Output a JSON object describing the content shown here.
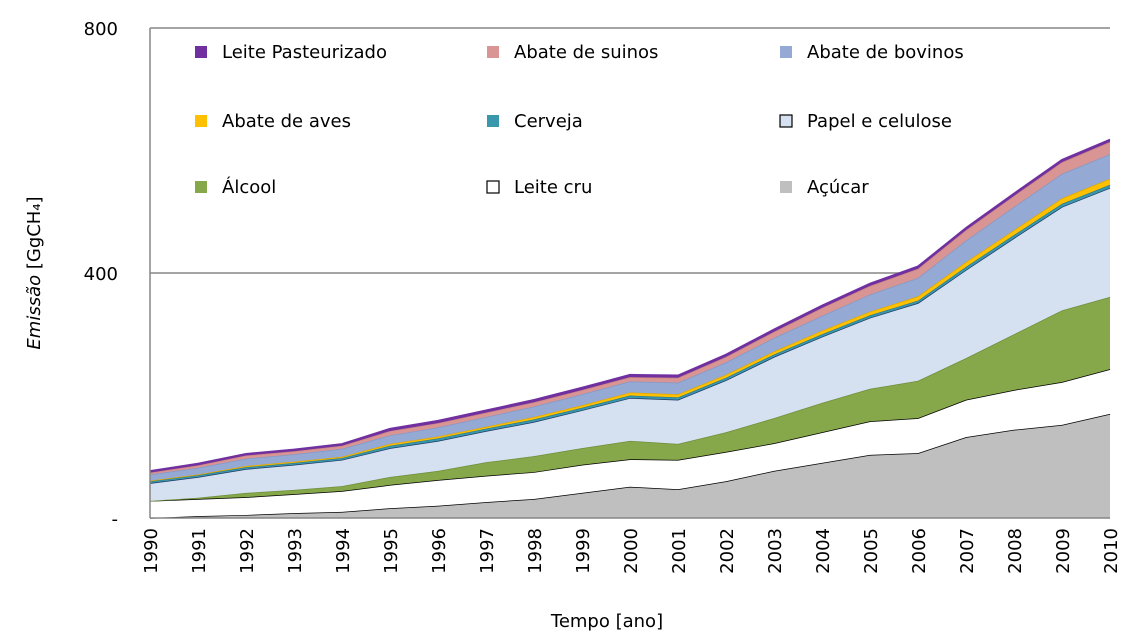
{
  "chart_data": {
    "type": "stacked-area",
    "x_label": "Tempo [ano]",
    "y_label": "Emissão",
    "y_unit": "[GgCH₄]",
    "categories": [
      "1990",
      "1991",
      "1992",
      "1993",
      "1994",
      "1995",
      "1996",
      "1997",
      "1998",
      "1999",
      "2000",
      "2001",
      "2002",
      "2003",
      "2004",
      "2005",
      "2006",
      "2007",
      "2008",
      "2009",
      "2010"
    ],
    "ylim": [
      0,
      800
    ],
    "yticks": [
      {
        "value": 0,
        "label": "-"
      },
      400,
      800
    ],
    "grid": true,
    "series": [
      {
        "name": "Açúcar",
        "color": "#bfbfbf",
        "edge": "#000000",
        "values": [
          0,
          3,
          5,
          8,
          10,
          16,
          20,
          26,
          31,
          41,
          51,
          47,
          60,
          77,
          90,
          103,
          106,
          132,
          144,
          152,
          170
        ]
      },
      {
        "name": "Leite cru",
        "color": "#ffffff",
        "edge": "#000000",
        "values": [
          28,
          28,
          29,
          31,
          34,
          38,
          42,
          43,
          44,
          46,
          45,
          48,
          48,
          45,
          50,
          55,
          57,
          61,
          65,
          70,
          73
        ]
      },
      {
        "name": "Álcool",
        "color": "#86a84a",
        "edge": "#6f8f3a",
        "values": [
          0,
          2,
          7,
          7,
          8,
          13,
          15,
          22,
          26,
          27,
          30,
          26,
          32,
          41,
          48,
          53,
          61,
          68,
          91,
          117,
          118
        ]
      },
      {
        "name": "Papel e celulose",
        "color": "#d5e0f1",
        "edge": "#1f3a68",
        "values": [
          29,
          34,
          39,
          41,
          43,
          47,
          49,
          51,
          56,
          62,
          70,
          72,
          85,
          100,
          108,
          116,
          127,
          144,
          157,
          169,
          178
        ]
      },
      {
        "name": "Cerveja",
        "color": "#3a98ad",
        "edge": "#2f7f91",
        "values": [
          3,
          3,
          3,
          3,
          3,
          4,
          4,
          4,
          4,
          4,
          4,
          4,
          4,
          4,
          4,
          4,
          4,
          5,
          5,
          5,
          5
        ]
      },
      {
        "name": "Abate de aves",
        "color": "#ffc000",
        "edge": "#e0a800",
        "values": [
          1,
          1,
          2,
          2,
          2,
          3,
          3,
          3,
          4,
          4,
          5,
          5,
          5,
          5,
          6,
          6,
          7,
          8,
          8,
          9,
          10
        ]
      },
      {
        "name": "Abate de bovinos",
        "color": "#94a9d4",
        "edge": "#8299c8",
        "values": [
          10,
          11,
          12,
          12,
          13,
          14,
          15,
          16,
          17,
          18,
          18,
          19,
          20,
          22,
          24,
          28,
          30,
          35,
          38,
          40,
          40
        ]
      },
      {
        "name": "Abate de suinos",
        "color": "#d99594",
        "edge": "#c98584",
        "values": [
          3,
          4,
          5,
          5,
          5,
          7,
          7,
          7,
          7,
          7,
          7,
          8,
          9,
          10,
          13,
          14,
          15,
          17,
          18,
          19,
          20
        ]
      },
      {
        "name": "Leite Pasteurizado",
        "color": "#7030a0",
        "edge": "#7030a0",
        "values": [
          3,
          3,
          3,
          3,
          3,
          4,
          4,
          4,
          4,
          4,
          4,
          4,
          4,
          4,
          4,
          4,
          4,
          4,
          4,
          4,
          4
        ]
      }
    ]
  }
}
